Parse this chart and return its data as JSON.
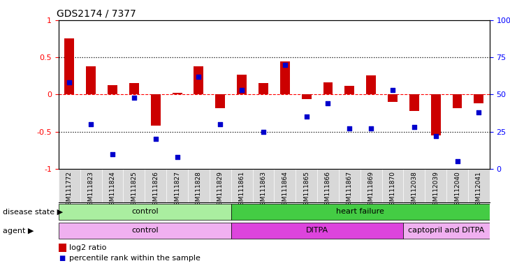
{
  "title": "GDS2174 / 7377",
  "samples": [
    "GSM111772",
    "GSM111823",
    "GSM111824",
    "GSM111825",
    "GSM111826",
    "GSM111827",
    "GSM111828",
    "GSM111829",
    "GSM111861",
    "GSM111863",
    "GSM111864",
    "GSM111865",
    "GSM111866",
    "GSM111867",
    "GSM111869",
    "GSM111870",
    "GSM112038",
    "GSM112039",
    "GSM112040",
    "GSM112041"
  ],
  "log2_ratio": [
    0.75,
    0.38,
    0.13,
    0.15,
    -0.42,
    0.02,
    0.38,
    -0.18,
    0.27,
    0.15,
    0.44,
    -0.06,
    0.16,
    0.12,
    0.26,
    -0.1,
    -0.22,
    -0.55,
    -0.18,
    -0.12
  ],
  "percentile": [
    0.58,
    0.3,
    0.1,
    0.48,
    0.2,
    0.08,
    0.62,
    0.3,
    0.53,
    0.25,
    0.7,
    0.35,
    0.44,
    0.27,
    0.27,
    0.53,
    0.28,
    0.22,
    0.05,
    0.38
  ],
  "bar_color": "#cc0000",
  "dot_color": "#0000cc",
  "disease_state": [
    {
      "label": "control",
      "start": 0,
      "end": 8,
      "color": "#aaeea0"
    },
    {
      "label": "heart failure",
      "start": 8,
      "end": 20,
      "color": "#44cc44"
    }
  ],
  "agent": [
    {
      "label": "control",
      "start": 0,
      "end": 8,
      "color": "#f0b0f0"
    },
    {
      "label": "DITPA",
      "start": 8,
      "end": 16,
      "color": "#dd44dd"
    },
    {
      "label": "captopril and DITPA",
      "start": 16,
      "end": 20,
      "color": "#f0b0f0"
    }
  ],
  "ylim": [
    -1,
    1
  ],
  "y2lim": [
    0,
    100
  ],
  "yticks_left": [
    -1,
    -0.5,
    0,
    0.5,
    1
  ],
  "ytick_labels_left": [
    "-1",
    "-0.5",
    "0",
    "0.5",
    "1"
  ],
  "y2ticks": [
    0,
    25,
    50,
    75,
    100
  ],
  "y2tick_labels": [
    "0",
    "25",
    "50",
    "75",
    "100%"
  ],
  "hlines": [
    0.5,
    -0.5
  ],
  "legend_log2": "log2 ratio",
  "legend_pct": "percentile rank within the sample",
  "background_color": "#ffffff",
  "xtick_bg": "#d8d8d8"
}
